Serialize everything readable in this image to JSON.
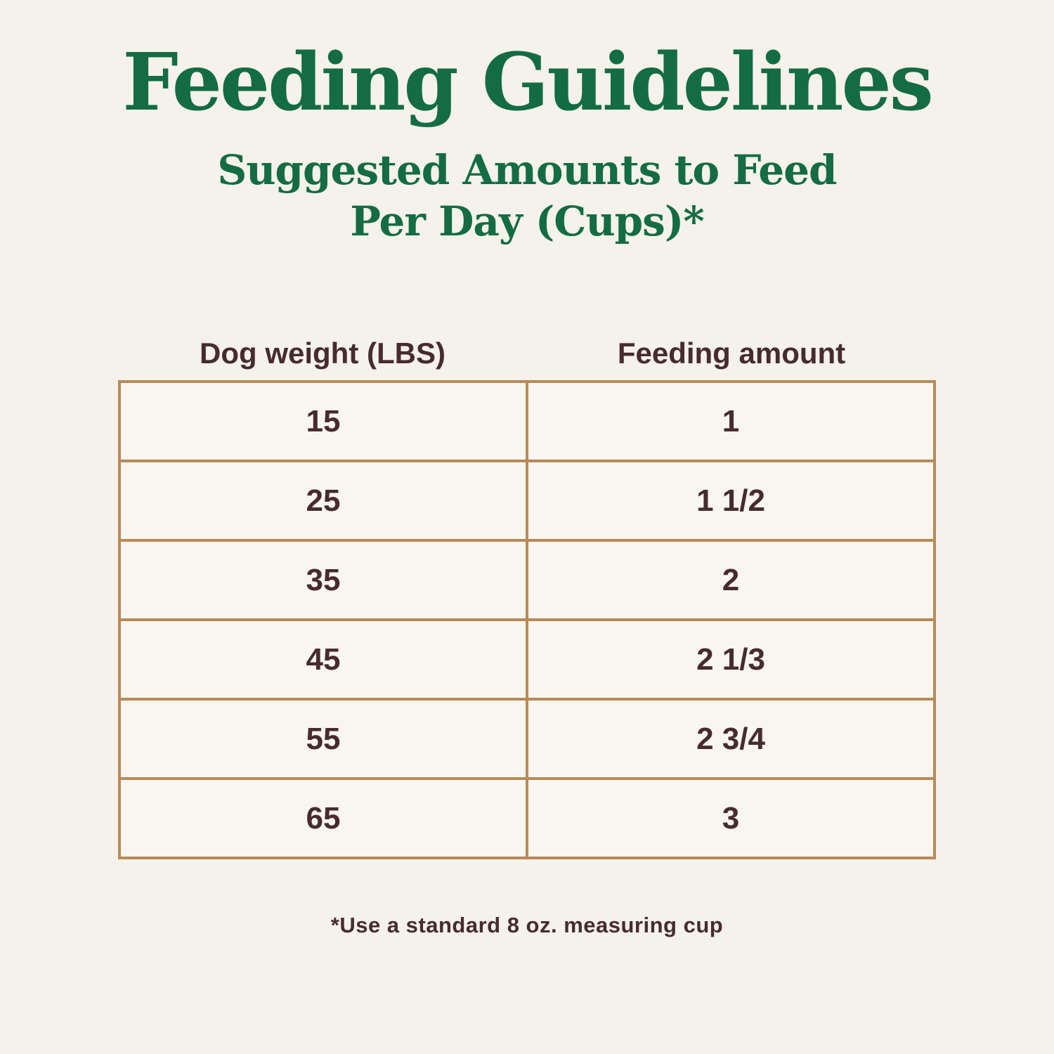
{
  "page": {
    "title": "Feeding Guidelines",
    "subtitle_line1": "Suggested Amounts to Feed",
    "subtitle_line2": "Per Day (Cups)*",
    "footnote": "*Use a standard 8 oz. measuring cup"
  },
  "colors": {
    "title_green": "#146c43",
    "text_brown": "#472b2e",
    "table_border_tan": "#b8895b",
    "page_background": "#f4f2ea",
    "cell_background": "#f8f6ef"
  },
  "table": {
    "headers": {
      "weight": "Dog weight (LBS)",
      "amount": "Feeding amount"
    },
    "rows": [
      {
        "weight": "15",
        "amount": "1"
      },
      {
        "weight": "25",
        "amount": "1 1/2"
      },
      {
        "weight": "35",
        "amount": "2"
      },
      {
        "weight": "45",
        "amount": "2 1/3"
      },
      {
        "weight": "55",
        "amount": "2 3/4"
      },
      {
        "weight": "65",
        "amount": "3"
      }
    ]
  },
  "chart_data": {
    "type": "table",
    "title": "Feeding Guidelines",
    "subtitle": "Suggested Amounts to Feed Per Day (Cups)*",
    "columns": [
      "Dog weight (LBS)",
      "Feeding amount"
    ],
    "rows": [
      [
        "15",
        "1"
      ],
      [
        "25",
        "1 1/2"
      ],
      [
        "35",
        "2"
      ],
      [
        "45",
        "2 1/3"
      ],
      [
        "55",
        "2 3/4"
      ],
      [
        "65",
        "3"
      ]
    ],
    "footnote": "*Use a standard 8 oz. measuring cup",
    "units": {
      "weight": "pounds",
      "amount": "cups per day"
    },
    "numeric_rows": [
      {
        "dog_weight_lbs": 15,
        "feeding_amount_cups": 1
      },
      {
        "dog_weight_lbs": 25,
        "feeding_amount_cups": 1.5
      },
      {
        "dog_weight_lbs": 35,
        "feeding_amount_cups": 2
      },
      {
        "dog_weight_lbs": 45,
        "feeding_amount_cups": 2.333
      },
      {
        "dog_weight_lbs": 55,
        "feeding_amount_cups": 2.75
      },
      {
        "dog_weight_lbs": 65,
        "feeding_amount_cups": 3
      }
    ]
  }
}
